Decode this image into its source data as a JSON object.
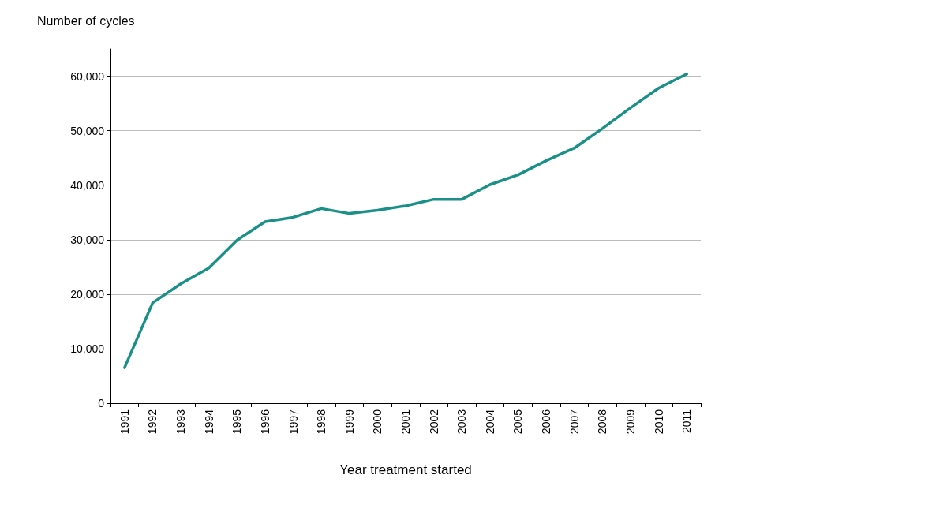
{
  "chart_data": {
    "type": "line",
    "xlabel": "Year treatment started",
    "ylabel": "Number of cycles",
    "categories": [
      "1991",
      "1992",
      "1993",
      "1994",
      "1995",
      "1996",
      "1997",
      "1998",
      "1999",
      "2000",
      "2001",
      "2002",
      "2003",
      "2004",
      "2005",
      "2006",
      "2007",
      "2008",
      "2009",
      "2010",
      "2011"
    ],
    "series": [
      {
        "color": "#1a9089",
        "values": [
          6500,
          18400,
          21900,
          24800,
          29900,
          33300,
          34100,
          35700,
          34800,
          35400,
          36200,
          37400,
          37400,
          40100,
          41900,
          44500,
          46800,
          50400,
          54200,
          57800,
          60400
        ]
      }
    ],
    "ylim": [
      0,
      65000
    ],
    "yticks": [
      0,
      {
        "value": 10000,
        "label": "10,000"
      },
      {
        "value": 20000,
        "label": "20,000"
      },
      {
        "value": 30000,
        "label": "30,000"
      },
      {
        "value": 40000,
        "label": "40,000"
      },
      {
        "value": 50000,
        "label": "50,000"
      },
      {
        "value": 60000,
        "label": "60,000"
      }
    ],
    "grid": "y",
    "marker": "none",
    "line_style": "solid"
  }
}
